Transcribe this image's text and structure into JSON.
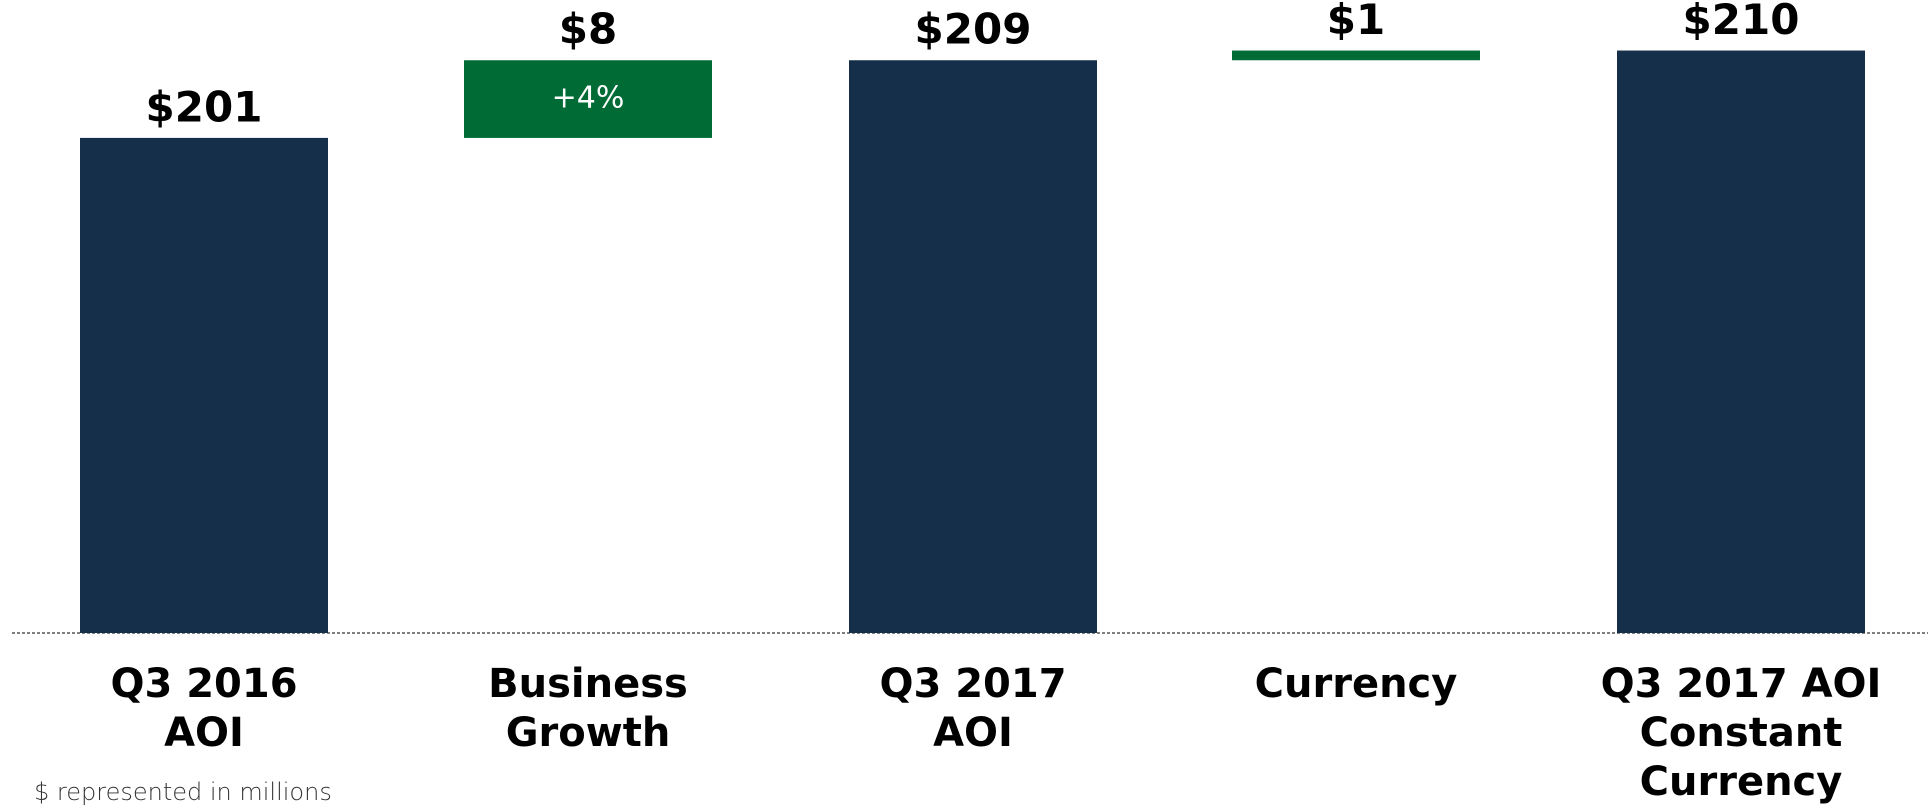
{
  "chart_data": {
    "type": "waterfall",
    "categories": [
      [
        "Q3 2016",
        "AOI"
      ],
      [
        "Business",
        "Growth"
      ],
      [
        "Q3 2017",
        "AOI"
      ],
      [
        "Currency"
      ],
      [
        "Q3 2017 AOI",
        "Constant",
        "Currency"
      ]
    ],
    "values": [
      201,
      8,
      209,
      1,
      210
    ],
    "value_labels": [
      "$201",
      "$8",
      "$209",
      "$1",
      "$210"
    ],
    "totals": [
      true,
      false,
      true,
      false,
      true
    ],
    "total_color": "#152f4a",
    "delta_color": "#006b35",
    "ylim": [
      150,
      215
    ],
    "annotations": [
      {
        "text": "+4%",
        "index": 1
      }
    ],
    "footnote": "$ represented in millions"
  }
}
